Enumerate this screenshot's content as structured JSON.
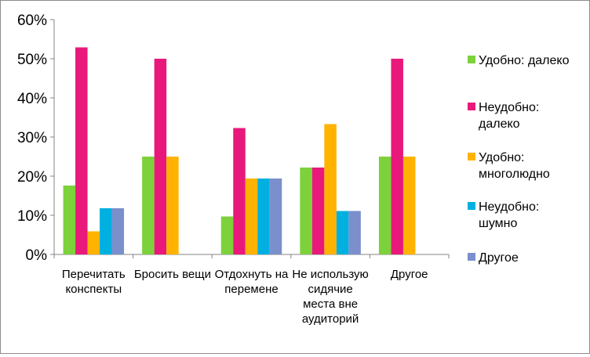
{
  "chart_data": {
    "type": "bar",
    "categories": [
      [
        "Перечитать",
        "конспекты"
      ],
      [
        "Бросить вещи"
      ],
      [
        "Отдохнуть на",
        "перемене"
      ],
      [
        "Не использую",
        "сидячие",
        "места вне",
        "аудиторий"
      ],
      [
        "Другое"
      ]
    ],
    "y_tick_labels": [
      "0%",
      "10%",
      "20%",
      "30%",
      "40%",
      "50%",
      "60%"
    ],
    "ylim": [
      0,
      60
    ],
    "grid": false,
    "legend_position": "right",
    "series": [
      {
        "name": "Удобно: далеко",
        "legend_lines": [
          "Удобно: далеко"
        ],
        "color": "#7dd13b",
        "values": [
          17.6,
          25,
          9.7,
          22.2,
          25
        ]
      },
      {
        "name": "Неудобно: далеко",
        "legend_lines": [
          "Неудобно:",
          "далеко"
        ],
        "color": "#e8197b",
        "values": [
          52.9,
          50,
          32.3,
          22.2,
          50
        ]
      },
      {
        "name": "Удобно: многолюдно",
        "legend_lines": [
          "Удобно:",
          "многолюдно"
        ],
        "color": "#ffb300",
        "values": [
          5.9,
          25,
          19.4,
          33.3,
          25
        ]
      },
      {
        "name": "Неудобно: шумно",
        "legend_lines": [
          "Неудобно:",
          "шумно"
        ],
        "color": "#00b0e0",
        "values": [
          11.8,
          0,
          19.4,
          11.1,
          0
        ]
      },
      {
        "name": "Другое",
        "legend_lines": [
          "Другое"
        ],
        "color": "#7b8fcd",
        "values": [
          11.8,
          0,
          19.4,
          11.1,
          0
        ]
      }
    ]
  }
}
